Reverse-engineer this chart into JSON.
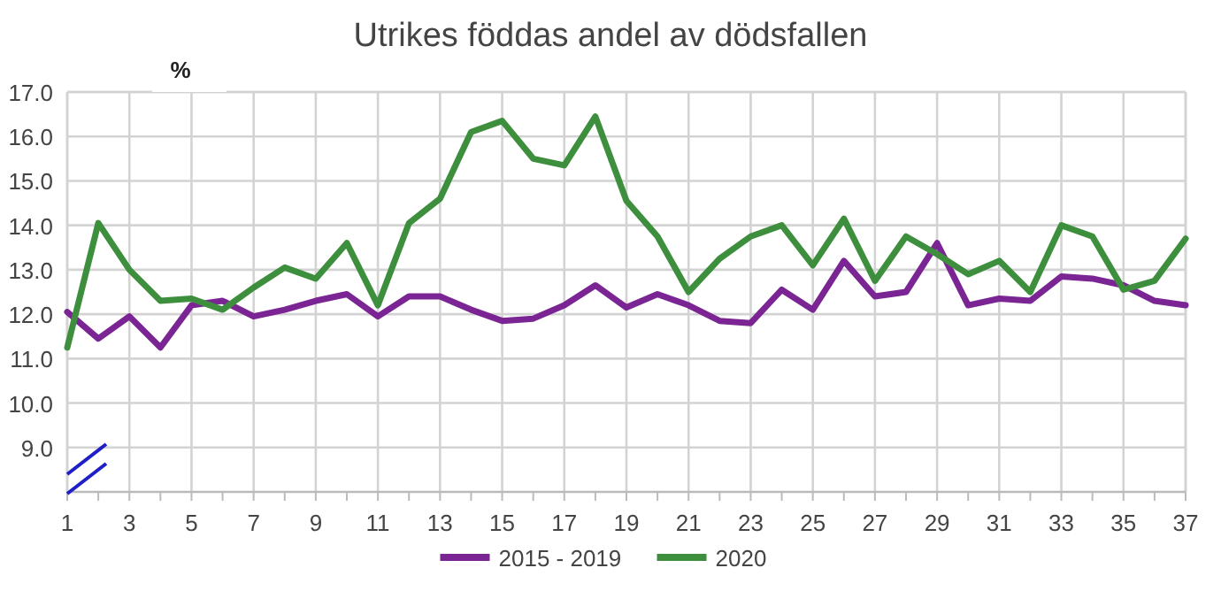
{
  "chart_data": {
    "type": "line",
    "title": "Utrikes föddas andel av dödsfallen",
    "ylabel": "%",
    "x": [
      1,
      2,
      3,
      4,
      5,
      6,
      7,
      8,
      9,
      10,
      11,
      12,
      13,
      14,
      15,
      16,
      17,
      18,
      19,
      20,
      21,
      22,
      23,
      24,
      25,
      26,
      27,
      28,
      29,
      30,
      31,
      32,
      33,
      34,
      35,
      36,
      37
    ],
    "xlim": [
      1,
      37
    ],
    "xticks": [
      1,
      3,
      5,
      7,
      9,
      11,
      13,
      15,
      17,
      19,
      21,
      23,
      25,
      27,
      29,
      31,
      33,
      35,
      37
    ],
    "ylim": [
      8,
      17
    ],
    "yticks": [
      {
        "value": 9,
        "label": "9.0"
      },
      {
        "value": 10,
        "label": "10.0"
      },
      {
        "value": 11,
        "label": "11.0"
      },
      {
        "value": 12,
        "label": "12.0"
      },
      {
        "value": 13,
        "label": "13.0"
      },
      {
        "value": 14,
        "label": "14.0"
      },
      {
        "value": 15,
        "label": "15.0"
      },
      {
        "value": 16,
        "label": "16.0"
      },
      {
        "value": 17,
        "label": "17.0"
      }
    ],
    "grid": true,
    "legend": "bottom",
    "marker": "none",
    "line_style": "solid",
    "series": [
      {
        "name": "2015 - 2019",
        "color": "#7b2594",
        "values": [
          12.05,
          11.45,
          11.95,
          11.25,
          12.2,
          12.3,
          11.95,
          12.1,
          12.3,
          12.45,
          11.95,
          12.4,
          12.4,
          12.1,
          11.85,
          11.9,
          12.2,
          12.65,
          12.15,
          12.45,
          12.2,
          11.85,
          11.8,
          12.55,
          12.1,
          13.2,
          12.4,
          12.5,
          13.6,
          12.2,
          12.35,
          12.3,
          12.85,
          12.8,
          12.65,
          12.3,
          12.2
        ]
      },
      {
        "name": "2020",
        "color": "#3d8f3d",
        "values": [
          11.25,
          14.05,
          13.0,
          12.3,
          12.35,
          12.1,
          12.6,
          13.05,
          12.8,
          13.6,
          12.2,
          14.05,
          14.6,
          16.1,
          16.35,
          15.5,
          15.35,
          16.45,
          14.55,
          13.75,
          12.5,
          13.25,
          13.75,
          14.0,
          13.1,
          14.15,
          12.75,
          13.75,
          13.35,
          12.9,
          13.2,
          12.5,
          14.0,
          13.75,
          12.55,
          12.75,
          13.7
        ]
      }
    ]
  }
}
